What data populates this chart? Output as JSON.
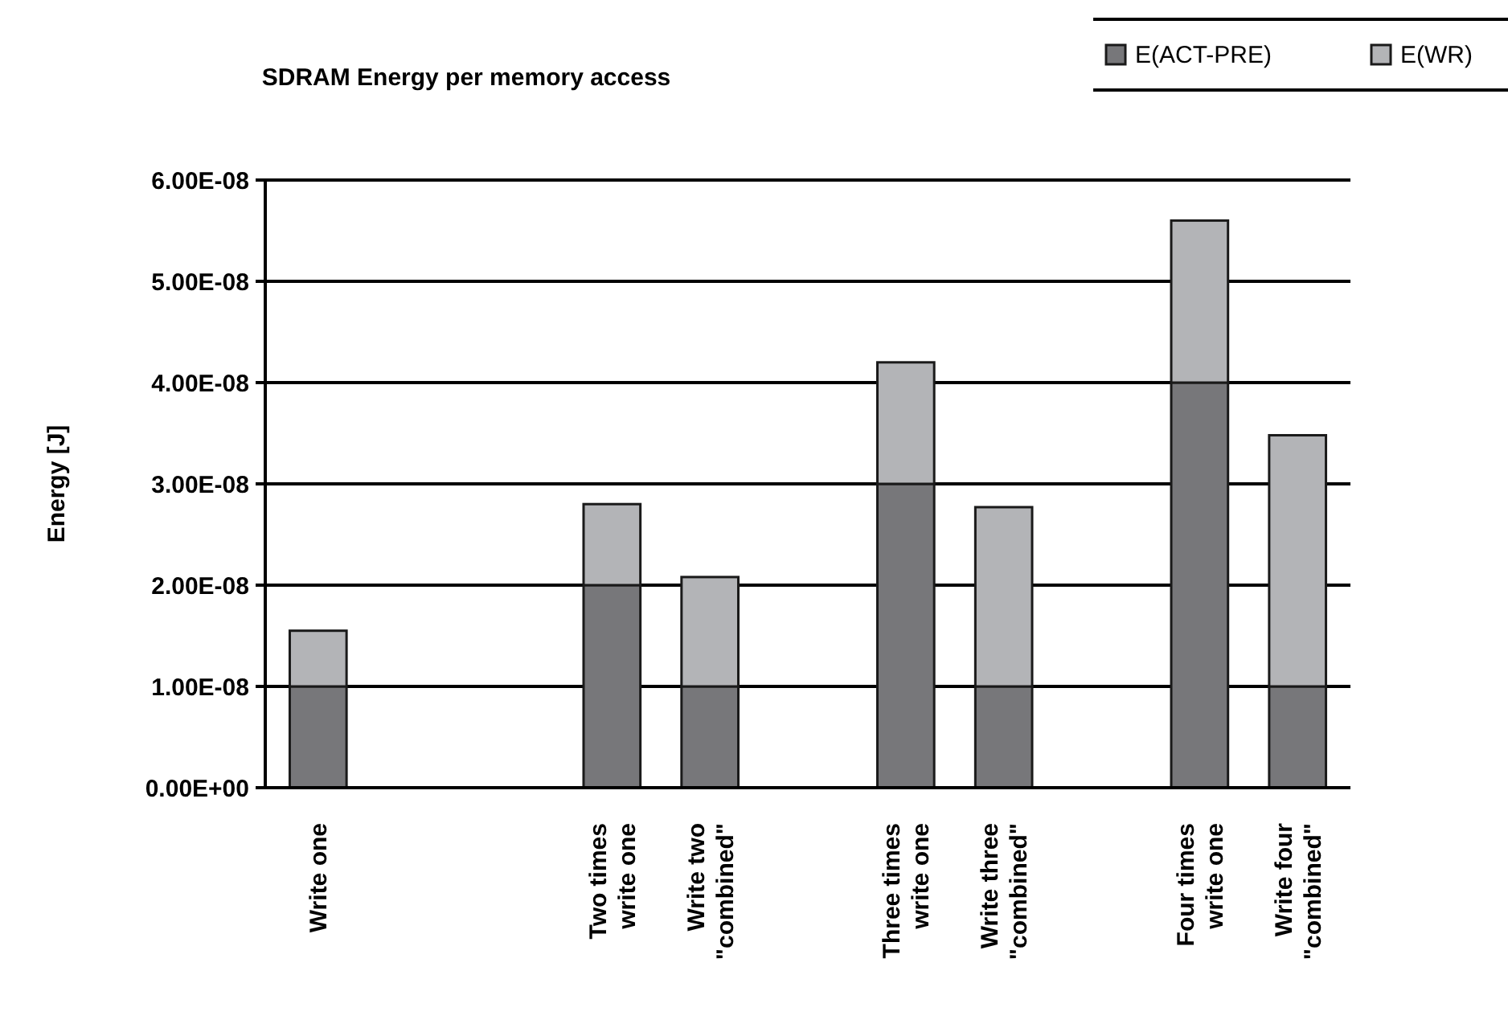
{
  "chart_data": {
    "type": "bar",
    "title": "SDRAM Energy per memory access",
    "ylabel": "Energy [J]",
    "categories": [
      "Write one",
      null,
      null,
      "Two times\nwrite one",
      "Write two\n\"combined\"",
      null,
      "Three times\nwrite one",
      "Write three\n\"combined\"",
      null,
      "Four times\nwrite one",
      "Write four\n\"combined\""
    ],
    "stacked": true,
    "series": [
      {
        "name": "E(ACT-PRE)",
        "color": "#77777a",
        "values": [
          1e-08,
          null,
          null,
          2e-08,
          1e-08,
          null,
          3e-08,
          1e-08,
          null,
          4e-08,
          1e-08
        ]
      },
      {
        "name": "E(WR)",
        "color": "#b3b4b7",
        "values": [
          5.5e-09,
          null,
          null,
          8e-09,
          1.08e-08,
          null,
          1.2e-08,
          1.77e-08,
          null,
          1.6e-08,
          2.48e-08
        ]
      }
    ],
    "ylim": [
      0,
      6e-08
    ],
    "yticks": [
      {
        "value": 0,
        "label": "0.00E+00"
      },
      {
        "value": 1e-08,
        "label": "1.00E-08"
      },
      {
        "value": 2e-08,
        "label": "2.00E-08"
      },
      {
        "value": 3e-08,
        "label": "3.00E-08"
      },
      {
        "value": 4e-08,
        "label": "4.00E-08"
      },
      {
        "value": 5e-08,
        "label": "5.00E-08"
      },
      {
        "value": 6e-08,
        "label": "6.00E-08"
      }
    ],
    "grid": "y",
    "legend": "top right"
  }
}
